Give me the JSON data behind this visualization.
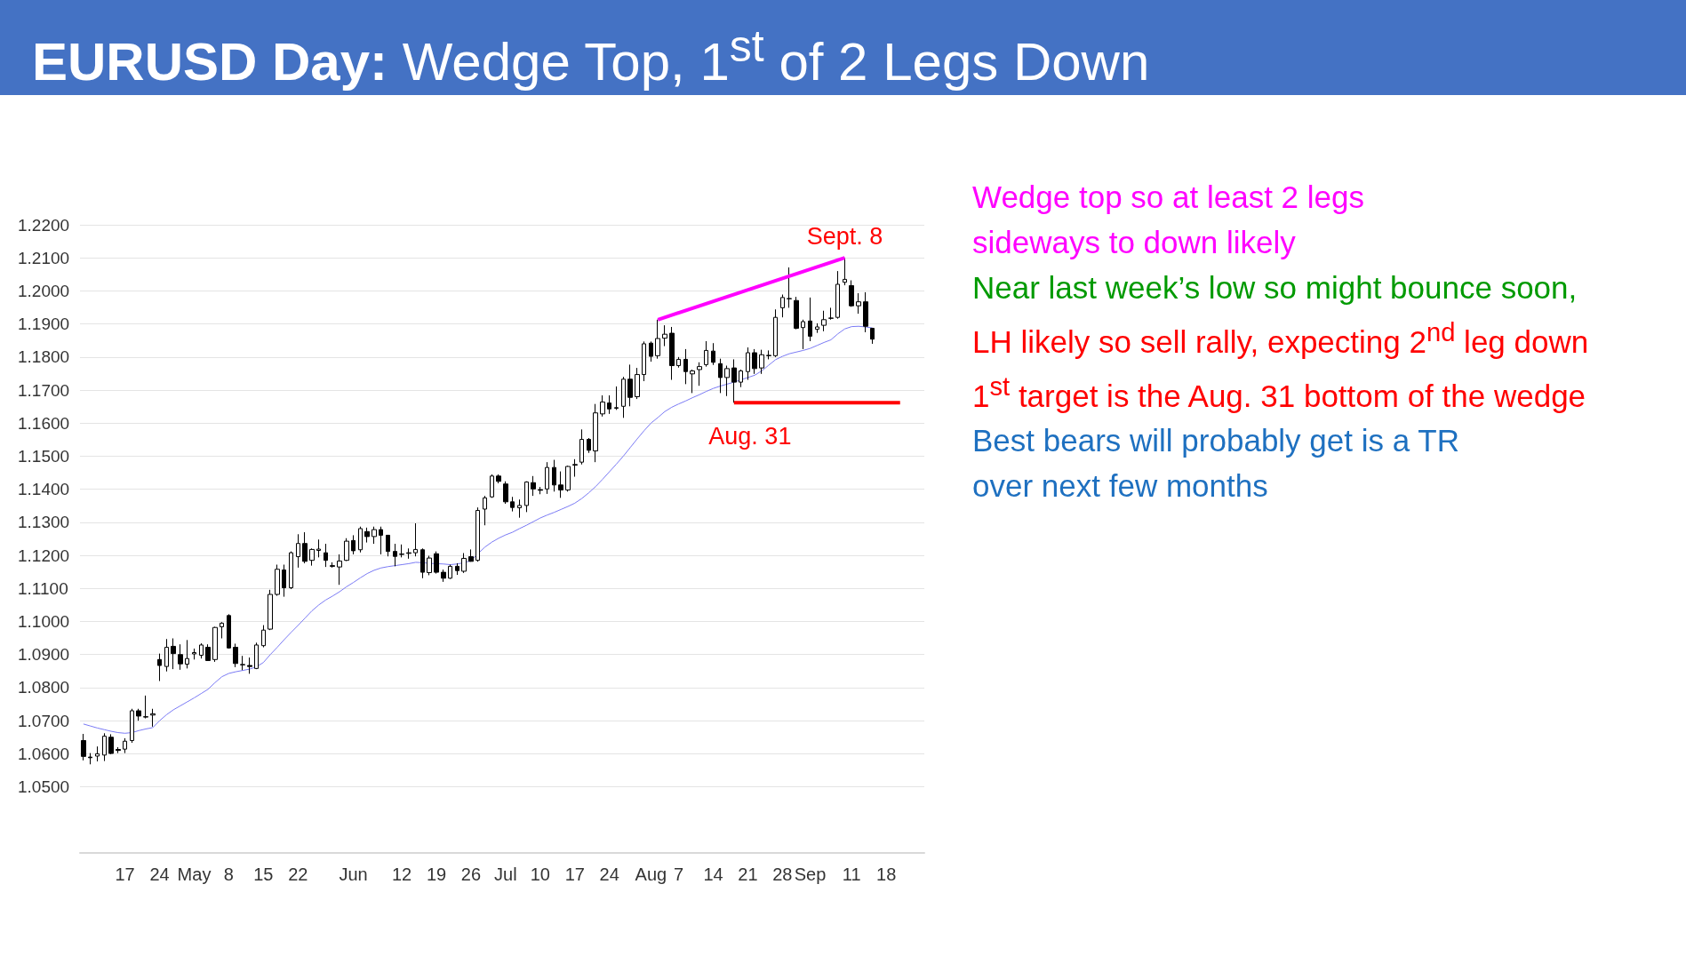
{
  "chart_data": {
    "type": "candlestick",
    "title": "EURUSD Day: Wedge Top, 1$^{st}$ of 2 Legs Down",
    "categories": [
      null,
      null,
      null,
      null,
      null,
      null,
      "17",
      null,
      null,
      null,
      null,
      "24",
      null,
      null,
      null,
      null,
      "May",
      null,
      null,
      null,
      null,
      "8",
      null,
      null,
      null,
      null,
      "15",
      null,
      null,
      null,
      null,
      "22",
      null,
      null,
      null,
      null,
      null,
      null,
      null,
      "Jun",
      null,
      null,
      null,
      null,
      null,
      null,
      "12",
      null,
      null,
      null,
      null,
      "19",
      null,
      null,
      null,
      null,
      "26",
      null,
      null,
      null,
      null,
      "Jul",
      null,
      null,
      null,
      null,
      "10",
      null,
      null,
      null,
      null,
      "17",
      null,
      null,
      null,
      null,
      "24",
      null,
      null,
      null,
      null,
      null,
      "Aug",
      null,
      null,
      null,
      "7",
      null,
      null,
      null,
      null,
      "14",
      null,
      null,
      null,
      null,
      "21",
      null,
      null,
      null,
      null,
      "28",
      null,
      null,
      null,
      "Sep",
      null,
      null,
      null,
      null,
      null,
      "11",
      null,
      null,
      null,
      null,
      "18",
      null,
      null,
      null,
      null,
      null
    ],
    "ohlc": [
      [
        1.064,
        1.066,
        1.058,
        1.0592
      ],
      [
        1.059,
        1.0602,
        1.0568,
        1.0588
      ],
      [
        1.0593,
        1.0622,
        1.0577,
        1.06
      ],
      [
        1.0596,
        1.0662,
        1.0578,
        1.0653
      ],
      [
        1.065,
        1.0659,
        1.0599,
        1.0601
      ],
      [
        1.0613,
        1.062,
        1.0602,
        1.061
      ],
      [
        1.0614,
        1.0647,
        1.0602,
        1.0638
      ],
      [
        1.064,
        1.0736,
        1.0633,
        1.073
      ],
      [
        1.073,
        1.0736,
        1.07,
        1.0714
      ],
      [
        1.0712,
        1.0776,
        1.0707,
        1.0711
      ],
      [
        1.0717,
        1.0736,
        1.0682,
        1.0721
      ],
      [
        1.0885,
        1.0903,
        1.082,
        1.0867
      ],
      [
        1.0864,
        1.0947,
        1.0849,
        1.0922
      ],
      [
        1.0925,
        1.0949,
        1.0856,
        1.0903
      ],
      [
        1.09,
        1.0931,
        1.0854,
        1.0872
      ],
      [
        1.0871,
        1.0944,
        1.0858,
        1.0888
      ],
      [
        1.0902,
        1.0918,
        1.0885,
        1.0906
      ],
      [
        1.0898,
        1.0934,
        1.0888,
        1.0929
      ],
      [
        1.0922,
        1.0931,
        1.0882,
        1.0882
      ],
      [
        1.0885,
        1.0984,
        1.0878,
        1.0982
      ],
      [
        1.0984,
        1.0998,
        1.0949,
        1.0995
      ],
      [
        1.1018,
        1.1022,
        1.0918,
        1.092
      ],
      [
        1.0922,
        1.0933,
        1.0862,
        1.0873
      ],
      [
        1.087,
        1.0896,
        1.0853,
        1.0869
      ],
      [
        1.0867,
        1.0891,
        1.0842,
        1.0864
      ],
      [
        1.0858,
        1.0936,
        1.0856,
        1.0929
      ],
      [
        1.0927,
        1.0989,
        1.0922,
        1.0974
      ],
      [
        1.0977,
        1.1096,
        1.0974,
        1.1082
      ],
      [
        1.1082,
        1.1172,
        1.1078,
        1.1158
      ],
      [
        1.1156,
        1.1172,
        1.1075,
        1.1102
      ],
      [
        1.1102,
        1.1212,
        1.1098,
        1.1208
      ],
      [
        1.1196,
        1.1264,
        1.1163,
        1.1236
      ],
      [
        1.1236,
        1.127,
        1.1176,
        1.1182
      ],
      [
        1.1185,
        1.1221,
        1.1169,
        1.1218
      ],
      [
        1.1215,
        1.1248,
        1.1194,
        1.1219
      ],
      [
        1.1208,
        1.1235,
        1.1165,
        1.1185
      ],
      [
        1.1169,
        1.1179,
        1.1163,
        1.1167
      ],
      [
        1.1165,
        1.1203,
        1.1111,
        1.1183
      ],
      [
        1.1185,
        1.1252,
        1.1183,
        1.1243
      ],
      [
        1.1245,
        1.1261,
        1.1203,
        1.1214
      ],
      [
        1.1217,
        1.1287,
        1.1209,
        1.1281
      ],
      [
        1.1272,
        1.1284,
        1.1239,
        1.1257
      ],
      [
        1.1257,
        1.1287,
        1.1235,
        1.1278
      ],
      [
        1.1278,
        1.1287,
        1.1203,
        1.1261
      ],
      [
        1.1261,
        1.1261,
        1.1197,
        1.1212
      ],
      [
        1.1212,
        1.1235,
        1.1167,
        1.1197
      ],
      [
        1.1204,
        1.1233,
        1.1194,
        1.1203
      ],
      [
        1.1206,
        1.1221,
        1.119,
        1.1208
      ],
      [
        1.1208,
        1.1297,
        1.1197,
        1.1218
      ],
      [
        1.1217,
        1.1221,
        1.1131,
        1.1149
      ],
      [
        1.1148,
        1.1199,
        1.114,
        1.1192
      ],
      [
        1.1205,
        1.1212,
        1.1145,
        1.1149
      ],
      [
        1.1149,
        1.1157,
        1.112,
        1.1131
      ],
      [
        1.1131,
        1.1172,
        1.1129,
        1.1167
      ],
      [
        1.1167,
        1.1176,
        1.1141,
        1.1154
      ],
      [
        1.1152,
        1.1207,
        1.1147,
        1.1191
      ],
      [
        1.1196,
        1.1218,
        1.1181,
        1.1182
      ],
      [
        1.1185,
        1.1345,
        1.1181,
        1.1336
      ],
      [
        1.134,
        1.138,
        1.1291,
        1.1374
      ],
      [
        1.1377,
        1.1445,
        1.1374,
        1.144
      ],
      [
        1.144,
        1.1445,
        1.1418,
        1.1424
      ],
      [
        1.1416,
        1.1424,
        1.1356,
        1.1362
      ],
      [
        1.1362,
        1.1377,
        1.1333,
        1.1345
      ],
      [
        1.1344,
        1.1369,
        1.1314,
        1.1351
      ],
      [
        1.1351,
        1.1424,
        1.1331,
        1.1422
      ],
      [
        1.142,
        1.144,
        1.138,
        1.1401
      ],
      [
        1.1399,
        1.1407,
        1.1385,
        1.1397
      ],
      [
        1.1401,
        1.1482,
        1.1386,
        1.1466
      ],
      [
        1.1466,
        1.1489,
        1.1393,
        1.1413
      ],
      [
        1.1413,
        1.1454,
        1.1374,
        1.1398
      ],
      [
        1.1398,
        1.1471,
        1.1393,
        1.1469
      ],
      [
        1.1473,
        1.1491,
        1.1438,
        1.1475
      ],
      [
        1.1482,
        1.1581,
        1.1475,
        1.1551
      ],
      [
        1.1551,
        1.1555,
        1.151,
        1.1518
      ],
      [
        1.1516,
        1.1658,
        1.1482,
        1.1631
      ],
      [
        1.1628,
        1.1684,
        1.162,
        1.1664
      ],
      [
        1.1661,
        1.1684,
        1.1628,
        1.1643
      ],
      [
        1.1645,
        1.1711,
        1.164,
        1.1647
      ],
      [
        1.1651,
        1.174,
        1.1616,
        1.1733
      ],
      [
        1.1733,
        1.1777,
        1.1651,
        1.1678
      ],
      [
        1.168,
        1.1767,
        1.1673,
        1.1747
      ],
      [
        1.1747,
        1.1847,
        1.1727,
        1.184
      ],
      [
        1.1842,
        1.1847,
        1.1786,
        1.1802
      ],
      [
        1.1804,
        1.1913,
        1.1795,
        1.1856
      ],
      [
        1.1857,
        1.1896,
        1.1833,
        1.1869
      ],
      [
        1.1872,
        1.1891,
        1.1731,
        1.1774
      ],
      [
        1.1774,
        1.18,
        1.1768,
        1.1793
      ],
      [
        1.1793,
        1.1824,
        1.1718,
        1.1756
      ],
      [
        1.1749,
        1.1762,
        1.1691,
        1.1758
      ],
      [
        1.1762,
        1.1784,
        1.1713,
        1.1771
      ],
      [
        1.1777,
        1.1848,
        1.1771,
        1.182
      ],
      [
        1.1818,
        1.1842,
        1.1776,
        1.1784
      ],
      [
        1.178,
        1.1795,
        1.1691,
        1.1738
      ],
      [
        1.1738,
        1.1774,
        1.1682,
        1.1765
      ],
      [
        1.1767,
        1.1793,
        1.1662,
        1.1724
      ],
      [
        1.1724,
        1.1762,
        1.1709,
        1.1758
      ],
      [
        1.1756,
        1.1829,
        1.1731,
        1.1813
      ],
      [
        1.1813,
        1.1824,
        1.1749,
        1.1765
      ],
      [
        1.1767,
        1.1822,
        1.1749,
        1.1807
      ],
      [
        1.1805,
        1.182,
        1.1793,
        1.1804
      ],
      [
        1.1804,
        1.1944,
        1.18,
        1.192
      ],
      [
        1.1949,
        1.1989,
        1.192,
        1.198
      ],
      [
        1.1976,
        1.2071,
        1.1949,
        1.1977
      ],
      [
        1.1971,
        1.1982,
        1.1884,
        1.1887
      ],
      [
        1.1889,
        1.1913,
        1.1824,
        1.1907
      ],
      [
        1.1909,
        1.198,
        1.1848,
        1.1863
      ],
      [
        1.1884,
        1.1902,
        1.1873,
        1.1891
      ],
      [
        1.1896,
        1.194,
        1.1878,
        1.1913
      ],
      [
        1.1917,
        1.1949,
        1.1913,
        1.1918
      ],
      [
        1.192,
        1.206,
        1.1916,
        1.202
      ],
      [
        1.2026,
        1.21,
        1.2017,
        1.2035
      ],
      [
        1.2016,
        1.2032,
        1.1952,
        1.1955
      ],
      [
        1.1955,
        1.1993,
        1.1931,
        1.1967
      ],
      [
        1.1967,
        1.1996,
        1.1875,
        1.1893
      ],
      [
        1.1887,
        1.1887,
        1.184,
        1.1854
      ],
      null,
      null,
      null,
      null,
      null,
      null,
      null
    ],
    "series": [
      {
        "type": "line",
        "color": "#7b7bf5",
        "values": [
          1.069,
          1.0684,
          1.0678,
          1.0673,
          1.0668,
          1.0664,
          1.0662,
          1.0664,
          1.067,
          1.0675,
          1.0679,
          1.07,
          1.0718,
          1.0733,
          1.0745,
          1.0757,
          1.0769,
          1.0782,
          1.0795,
          1.0815,
          1.0833,
          1.0843,
          1.0848,
          1.0852,
          1.0856,
          1.0863,
          1.0876,
          1.09,
          1.0922,
          1.0945,
          1.0967,
          1.0988,
          1.101,
          1.1032,
          1.105,
          1.1065,
          1.1077,
          1.109,
          1.1105,
          1.1118,
          1.1132,
          1.1145,
          1.1155,
          1.1162,
          1.1166,
          1.1169,
          1.1172,
          1.1175,
          1.1179,
          1.1178,
          1.1176,
          1.1175,
          1.1174,
          1.1172,
          1.1174,
          1.1178,
          1.1184,
          1.1205,
          1.1225,
          1.124,
          1.1252,
          1.1262,
          1.127,
          1.1281,
          1.1291,
          1.1302,
          1.1313,
          1.1322,
          1.133,
          1.1339,
          1.1348,
          1.1358,
          1.1372,
          1.1389,
          1.1408,
          1.143,
          1.1453,
          1.1476,
          1.15,
          1.1526,
          1.1552,
          1.1577,
          1.16,
          1.1617,
          1.1635,
          1.1648,
          1.1658,
          1.1667,
          1.1677,
          1.1686,
          1.1696,
          1.1705,
          1.1712,
          1.1718,
          1.1724,
          1.1731,
          1.1738,
          1.1745,
          1.1758,
          1.1775,
          1.1792,
          1.1802,
          1.181,
          1.1815,
          1.182,
          1.1826,
          1.1835,
          1.1844,
          1.1852,
          1.187,
          1.1885,
          1.1892,
          1.1893,
          1.1891,
          1.1888,
          null,
          null,
          null,
          null,
          null,
          null,
          null
        ]
      },
      {
        "type": "line",
        "color": "#ff00ff",
        "values": [
          null,
          null,
          null,
          null,
          null,
          null,
          null,
          null,
          null,
          null,
          null,
          null,
          null,
          null,
          null,
          null,
          null,
          null,
          null,
          null,
          null,
          null,
          null,
          null,
          null,
          null,
          null,
          null,
          null,
          null,
          null,
          null,
          null,
          null,
          null,
          null,
          null,
          null,
          null,
          null,
          null,
          null,
          null,
          null,
          null,
          null,
          null,
          null,
          null,
          null,
          null,
          null,
          null,
          null,
          null,
          null,
          null,
          null,
          null,
          null,
          null,
          null,
          null,
          null,
          null,
          null,
          null,
          null,
          null,
          null,
          null,
          null,
          null,
          null,
          null,
          null,
          null,
          null,
          null,
          null,
          null,
          null,
          null,
          1.1913,
          null,
          null,
          null,
          null,
          null,
          null,
          null,
          null,
          null,
          null,
          null,
          null,
          null,
          null,
          null,
          null,
          null,
          null,
          null,
          null,
          null,
          null,
          null,
          null,
          null,
          null,
          1.21,
          null,
          null,
          null,
          null,
          null,
          null,
          null,
          null,
          null,
          null,
          null
        ]
      },
      {
        "type": "line",
        "color": "#ff0000",
        "values": [
          null,
          null,
          null,
          null,
          null,
          null,
          null,
          null,
          null,
          null,
          null,
          null,
          null,
          null,
          null,
          null,
          null,
          null,
          null,
          null,
          null,
          null,
          null,
          null,
          null,
          null,
          null,
          null,
          null,
          null,
          null,
          null,
          null,
          null,
          null,
          null,
          null,
          null,
          null,
          null,
          null,
          null,
          null,
          null,
          null,
          null,
          null,
          null,
          null,
          null,
          null,
          null,
          null,
          null,
          null,
          null,
          null,
          null,
          null,
          null,
          null,
          null,
          null,
          null,
          null,
          null,
          null,
          null,
          null,
          null,
          null,
          null,
          null,
          null,
          null,
          null,
          null,
          null,
          null,
          null,
          null,
          null,
          null,
          null,
          null,
          null,
          null,
          null,
          null,
          null,
          null,
          null,
          null,
          null,
          1.1662,
          null,
          null,
          null,
          null,
          null,
          null,
          null,
          null,
          null,
          null,
          null,
          null,
          null,
          null,
          null,
          null,
          null,
          null,
          null,
          null,
          null,
          null,
          null,
          1.1662,
          null,
          null,
          null
        ]
      }
    ],
    "ylim": [
      1.03,
      1.22
    ],
    "yticks": [
      {
        "value": 1.05,
        "label": "1.0500"
      },
      {
        "value": 1.06,
        "label": "1.0600"
      },
      {
        "value": 1.07,
        "label": "1.0700"
      },
      {
        "value": 1.08,
        "label": "1.0800"
      },
      {
        "value": 1.09,
        "label": "1.0900"
      },
      {
        "value": 1.1,
        "label": "1.1000"
      },
      {
        "value": 1.11,
        "label": "1.1100"
      },
      {
        "value": 1.12,
        "label": "1.1200"
      },
      {
        "value": 1.13,
        "label": "1.1300"
      },
      {
        "value": 1.14,
        "label": "1.1400"
      },
      {
        "value": 1.15,
        "label": "1.1500"
      },
      {
        "value": 1.16,
        "label": "1.1600"
      },
      {
        "value": 1.17,
        "label": "1.1700"
      },
      {
        "value": 1.18,
        "label": "1.1800"
      },
      {
        "value": 1.19,
        "label": "1.1900"
      },
      {
        "value": 1.2,
        "label": "1.2000"
      },
      {
        "value": 1.21,
        "label": "1.2100"
      },
      {
        "value": 1.22,
        "label": "1.2200"
      }
    ],
    "grid": "y",
    "marker": "none",
    "annotations": [
      {
        "text": "Sept. 8",
        "y": 1.21
      },
      {
        "text": "Aug. 31",
        "y": 1.1662
      },
      "Wedge top so at least 2 legs",
      "sideways to down likely",
      "Near last week’s low so might bounce soon,",
      "LH likely so sell rally, expecting 2$^{nd}$ leg down",
      "1$^{st}$ target is the Aug. 31 bottom of the wedge",
      "Best bears will probably get is a TR",
      "over next few months"
    ]
  }
}
